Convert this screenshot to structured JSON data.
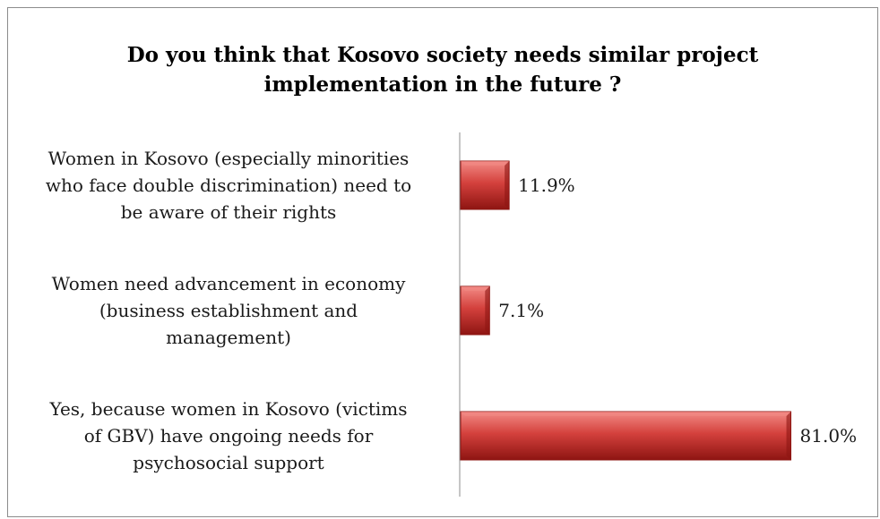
{
  "chart_data": {
    "type": "bar",
    "orientation": "horizontal",
    "title": "Do you think that Kosovo society needs similar project\nimplementation in the future ?",
    "categories": [
      "Women in Kosovo (especially minorities who face double discrimination) need to be aware of their rights",
      "Women need advancement in economy (business establishment and management)",
      "Yes, because women in Kosovo (victims of GBV) have ongoing needs for psychosocial support"
    ],
    "category_lines": [
      [
        "Women in Kosovo (especially minorities",
        "who face double discrimination) need to",
        "be aware of their rights"
      ],
      [
        "Women need advancement in economy",
        "(business establishment and",
        "management)"
      ],
      [
        "Yes, because women in Kosovo (victims",
        "of GBV) have ongoing needs for",
        "psychosocial support"
      ]
    ],
    "values": [
      11.9,
      7.1,
      81.0
    ],
    "data_labels": [
      "11.9%",
      "7.1%",
      "81.0%"
    ],
    "xlabel": "",
    "ylabel": "",
    "xlim": [
      0,
      100
    ],
    "grid": false,
    "legend": "none",
    "colors": {
      "bar_light": "#f28a85",
      "bar_main": "#d4413d",
      "bar_dark": "#8e1512",
      "axis": "#8c8c8c"
    }
  }
}
